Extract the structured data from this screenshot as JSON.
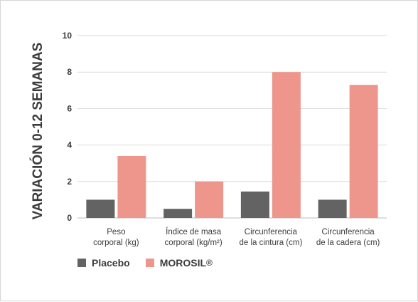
{
  "chart_data": {
    "type": "bar",
    "ylabel": "VARIACIÓN 0-12 SEMANAS",
    "xlabel": "",
    "ylim": [
      0,
      10
    ],
    "yticks": [
      0,
      2,
      4,
      6,
      8,
      10
    ],
    "grid": true,
    "legend_position": "bottom-left",
    "categories": [
      [
        "Peso",
        "corporal (kg)"
      ],
      [
        "Índice de masa",
        "corporal (kg/m²)"
      ],
      [
        "Circunferencia",
        "de la cintura (cm)"
      ],
      [
        "Circunferencia",
        "de la cadera (cm)"
      ]
    ],
    "series": [
      {
        "name": "Placebo",
        "color": "#636363",
        "values": [
          1.0,
          0.5,
          1.45,
          1.0
        ]
      },
      {
        "name": "MOROSIL",
        "name_suffix": "®",
        "color": "#ef968c",
        "values": [
          3.4,
          2.0,
          8.0,
          7.3
        ]
      }
    ]
  }
}
